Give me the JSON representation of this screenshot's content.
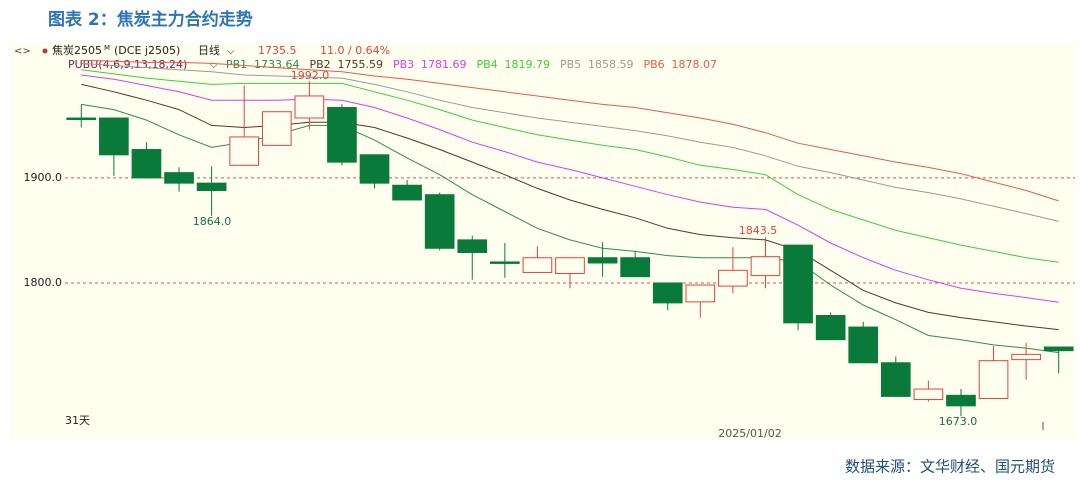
{
  "chart_data": {
    "type": "candlestick",
    "title": "图表 2：焦炭主力合约走势",
    "header": {
      "symbol": "焦炭2505",
      "suffix": "M",
      "exchange": "(DCE j2505)",
      "period": "日线",
      "price": "1735.5",
      "change": "11.0 / 0.64%"
    },
    "indicator": "PUBU(4,6,9,13,18,24)",
    "period_label": "31天",
    "x_label": "2025/01/02",
    "annotations": [
      "1992.0",
      "1864.0",
      "1843.5",
      "1673.0"
    ],
    "source": "数据来源：文华财经、国元期货",
    "ylim": [
      1660,
      2017
    ],
    "yticks": [
      {
        "value": 1900,
        "label": "1900.0"
      },
      {
        "value": 1800,
        "label": "1800.0"
      }
    ],
    "grid": true,
    "up_color": "#e8413c",
    "down_color": "#0a7a3a",
    "candles": {
      "open": [
        1957,
        1957,
        1927,
        1905,
        1895,
        1912,
        1931,
        1957,
        1967,
        1922,
        1893,
        1884,
        1841,
        1820,
        1810,
        1809,
        1824,
        1824,
        1800,
        1782,
        1797,
        1807,
        1836,
        1769,
        1758,
        1724,
        1689,
        1693,
        1690,
        1727,
        1739
      ],
      "high": [
        1970,
        1957,
        1934,
        1910,
        1911,
        1988,
        1963,
        1992,
        1970,
        1922,
        1898,
        1886,
        1845,
        1838,
        1835,
        1824,
        1839,
        1830,
        1800,
        1798,
        1834,
        1843.5,
        1836,
        1772,
        1763,
        1730,
        1707,
        1699,
        1740,
        1743,
        1739
      ],
      "low": [
        1948,
        1902,
        1900,
        1887,
        1864,
        1912,
        1931,
        1946,
        1912,
        1890,
        1879,
        1831,
        1803,
        1805,
        1810,
        1795,
        1806,
        1806,
        1774,
        1767,
        1790,
        1795,
        1755,
        1746,
        1724,
        1692,
        1687,
        1673,
        1690,
        1708,
        1714
      ],
      "close": [
        1957,
        1922,
        1900,
        1895,
        1888,
        1939,
        1963,
        1978,
        1915,
        1895,
        1879,
        1833,
        1829,
        1820,
        1824,
        1824,
        1819,
        1806,
        1781,
        1798,
        1812,
        1825,
        1762,
        1746,
        1724,
        1692,
        1699,
        1683,
        1726,
        1732,
        1735.5
      ]
    },
    "series": [
      {
        "name": "PB1",
        "color": "#2e8b4f",
        "values": [
          1970,
          1965,
          1955,
          1941,
          1929,
          1934,
          1941,
          1950,
          1950,
          1936,
          1919,
          1903,
          1884,
          1868,
          1852,
          1841,
          1833,
          1830,
          1826,
          1824,
          1824,
          1824,
          1820,
          1798,
          1779,
          1765,
          1750,
          1746,
          1741,
          1738,
          1733.64
        ]
      },
      {
        "name": "PB2",
        "color": "#5a3326",
        "values": [
          1989,
          1982,
          1974,
          1965,
          1950,
          1948,
          1950,
          1953,
          1953,
          1948,
          1938,
          1927,
          1915,
          1903,
          1890,
          1879,
          1870,
          1862,
          1852,
          1846,
          1843,
          1841,
          1831,
          1812,
          1793,
          1781,
          1772,
          1767,
          1763,
          1759,
          1755.59
        ]
      },
      {
        "name": "PB3",
        "color": "#e03ce0",
        "values": [
          1998,
          1994,
          1988,
          1982,
          1974,
          1974,
          1974,
          1975,
          1974,
          1967,
          1957,
          1946,
          1934,
          1925,
          1915,
          1908,
          1900,
          1892,
          1884,
          1877,
          1872,
          1870,
          1855,
          1838,
          1824,
          1812,
          1803,
          1795,
          1790,
          1786,
          1781.69
        ]
      },
      {
        "name": "PB4",
        "color": "#3ccf3c",
        "values": [
          2003,
          1999,
          1995,
          1992,
          1989,
          1990,
          1990,
          1990,
          1990,
          1982,
          1974,
          1965,
          1955,
          1948,
          1941,
          1936,
          1931,
          1927,
          1920,
          1912,
          1908,
          1903,
          1884,
          1870,
          1860,
          1850,
          1843,
          1836,
          1830,
          1824,
          1819.79
        ]
      },
      {
        "name": "PB5",
        "color": "#9a9a9a",
        "values": [
          2009,
          2007,
          2005,
          2003,
          2001,
          1998,
          1997,
          1996,
          1995,
          1989,
          1982,
          1974,
          1967,
          1962,
          1957,
          1953,
          1949,
          1945,
          1940,
          1934,
          1929,
          1921,
          1911,
          1905,
          1898,
          1891,
          1886,
          1880,
          1873,
          1866,
          1858.59
        ]
      },
      {
        "name": "PB6",
        "color": "#e85a4a",
        "values": [
          2012,
          2011,
          2010,
          2010,
          2009,
          2007,
          2005,
          2003,
          2001,
          1997,
          1994,
          1990,
          1986,
          1982,
          1978,
          1974,
          1970,
          1967,
          1962,
          1957,
          1951,
          1943,
          1933,
          1927,
          1921,
          1915,
          1910,
          1904,
          1896,
          1888,
          1878.07
        ]
      }
    ]
  }
}
